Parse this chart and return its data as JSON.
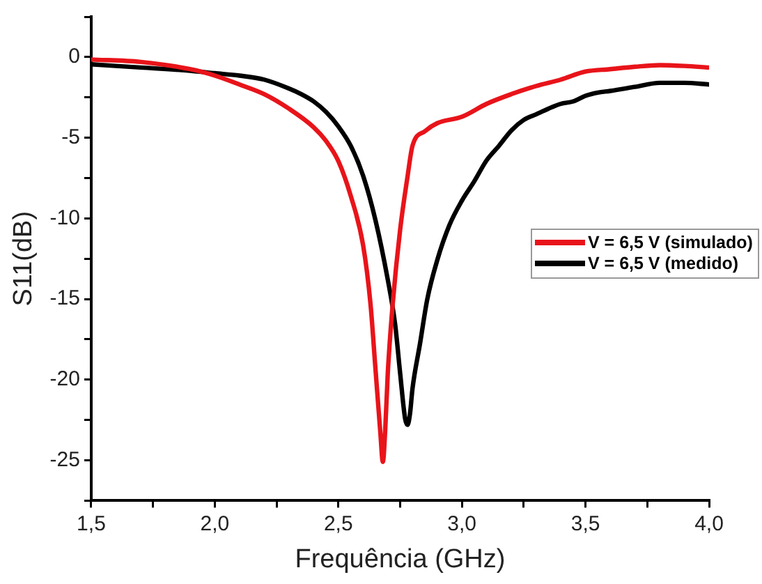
{
  "chart_data": {
    "type": "line",
    "xlabel": "Frequência (GHz)",
    "ylabel": "S11(dB)",
    "xlim": [
      1.5,
      4.0
    ],
    "ylim": [
      -27.5,
      2.5
    ],
    "xticks": [
      {
        "value": 1.5,
        "label": "1,5"
      },
      {
        "value": 1.75,
        "label": null
      },
      {
        "value": 2.0,
        "label": "2,0"
      },
      {
        "value": 2.25,
        "label": null
      },
      {
        "value": 2.5,
        "label": "2,5"
      },
      {
        "value": 2.75,
        "label": null
      },
      {
        "value": 3.0,
        "label": "3,0"
      },
      {
        "value": 3.25,
        "label": null
      },
      {
        "value": 3.5,
        "label": "3,5"
      },
      {
        "value": 3.75,
        "label": null
      },
      {
        "value": 4.0,
        "label": "4,0"
      }
    ],
    "yticks": [
      {
        "value": 2.5,
        "label": null
      },
      0,
      {
        "value": -2.5,
        "label": null
      },
      -5,
      {
        "value": -7.5,
        "label": null
      },
      -10,
      {
        "value": -12.5,
        "label": null
      },
      -15,
      {
        "value": -17.5,
        "label": null
      },
      -20,
      {
        "value": -22.5,
        "label": null
      },
      -25,
      {
        "value": -27.5,
        "label": null
      }
    ],
    "grid": false,
    "legend": "right",
    "marker": "none",
    "line_style": "solid",
    "series": [
      {
        "name": "V = 6,5 V (simulado)",
        "color": "#e8141a",
        "x": [
          1.5,
          1.7,
          1.9,
          2.0,
          2.1,
          2.2,
          2.3,
          2.4,
          2.45,
          2.5,
          2.55,
          2.6,
          2.63,
          2.65,
          2.67,
          2.68,
          2.69,
          2.7,
          2.72,
          2.75,
          2.78,
          2.8,
          2.85,
          2.9,
          3.0,
          3.1,
          3.2,
          3.3,
          3.4,
          3.5,
          3.6,
          3.7,
          3.8,
          3.9,
          4.0
        ],
        "values": [
          -0.15,
          -0.3,
          -0.75,
          -1.15,
          -1.7,
          -2.3,
          -3.2,
          -4.35,
          -5.2,
          -6.45,
          -8.6,
          -11.65,
          -15.3,
          -19.3,
          -23.3,
          -25.1,
          -23,
          -19.6,
          -15.3,
          -10.7,
          -7.4,
          -5.5,
          -4.6,
          -4.1,
          -3.7,
          -2.9,
          -2.3,
          -1.8,
          -1.4,
          -0.9,
          -0.75,
          -0.6,
          -0.5,
          -0.55,
          -0.65
        ]
      },
      {
        "name": "V = 6,5 V (medido)",
        "color": "#000000",
        "x": [
          1.5,
          1.7,
          1.9,
          2.0,
          2.1,
          2.2,
          2.3,
          2.35,
          2.4,
          2.45,
          2.5,
          2.55,
          2.6,
          2.65,
          2.7,
          2.73,
          2.75,
          2.77,
          2.78,
          2.79,
          2.8,
          2.83,
          2.86,
          2.9,
          2.95,
          3.0,
          3.05,
          3.1,
          3.15,
          3.2,
          3.25,
          3.3,
          3.35,
          3.4,
          3.45,
          3.5,
          3.55,
          3.6,
          3.7,
          3.8,
          3.9,
          4.0
        ],
        "values": [
          -0.45,
          -0.65,
          -0.85,
          -1.0,
          -1.15,
          -1.4,
          -1.95,
          -2.3,
          -2.75,
          -3.4,
          -4.3,
          -5.5,
          -7.35,
          -10.1,
          -13.8,
          -16.6,
          -19.6,
          -22.4,
          -22.8,
          -22.1,
          -20.55,
          -17.8,
          -15.0,
          -12.6,
          -10.4,
          -8.9,
          -7.7,
          -6.4,
          -5.5,
          -4.55,
          -3.9,
          -3.55,
          -3.2,
          -2.9,
          -2.75,
          -2.4,
          -2.2,
          -2.1,
          -1.85,
          -1.6,
          -1.6,
          -1.7
        ]
      }
    ]
  }
}
